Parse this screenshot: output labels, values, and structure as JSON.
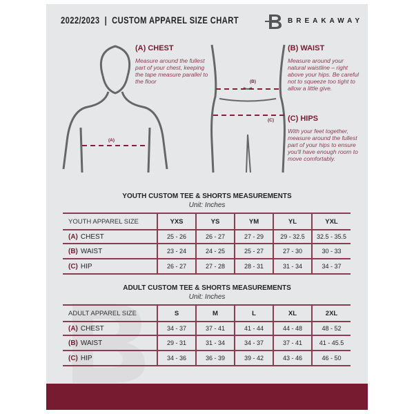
{
  "header": {
    "title": "2022/2023  |  CUSTOM APPAREL SIZE CHART",
    "brand": "BREAKAWAY"
  },
  "measures": {
    "chest": {
      "label": "(A) CHEST",
      "desc": "Measure around the fullest part of your chest, keeping the tape measure parallel to the floor",
      "marker": "(A)"
    },
    "waist": {
      "label": "(B) WAIST",
      "desc": "Measure around your natural waistline – right above your hips. Be careful not to squeeze too tight to allow a little give.",
      "marker": "(B)"
    },
    "hips": {
      "label": "(C) HIPS",
      "desc": "With your feet together, measure around the fullest part of your hips to ensure you'll have enough room to move comfortably.",
      "marker": "(C)"
    }
  },
  "youth": {
    "title": "YOUTH CUSTOM TEE & SHORTS MEASUREMENTS",
    "unit": "Unit: Inches",
    "header": "YOUTH APPAREL SIZE",
    "sizes": [
      "YXS",
      "YS",
      "YM",
      "YL",
      "YXL"
    ],
    "rows": [
      {
        "code": "(A)",
        "name": "CHEST",
        "values": [
          "25 - 26",
          "26 - 27",
          "27 - 29",
          "29 - 32.5",
          "32.5 - 35.5"
        ]
      },
      {
        "code": "(B)",
        "name": "WAIST",
        "values": [
          "23 - 24",
          "24 - 25",
          "25 - 27",
          "27 - 30",
          "30 - 33"
        ]
      },
      {
        "code": "(C)",
        "name": "HIP",
        "values": [
          "26 - 27",
          "27 - 28",
          "28 - 31",
          "31 - 34",
          "34 - 37"
        ]
      }
    ]
  },
  "adult": {
    "title": "ADULT CUSTOM TEE & SHORTS MEASUREMENTS",
    "unit": "Unit: Inches",
    "header": "ADULT APPAREL SIZE",
    "sizes": [
      "S",
      "M",
      "L",
      "XL",
      "2XL"
    ],
    "rows": [
      {
        "code": "(A)",
        "name": "CHEST",
        "values": [
          "34 - 37",
          "37 - 41",
          "41 - 44",
          "44 - 48",
          "48 - 52"
        ]
      },
      {
        "code": "(B)",
        "name": "WAIST",
        "values": [
          "29 - 31",
          "31 - 34",
          "34 - 37",
          "37 - 41",
          "41 - 45.5"
        ]
      },
      {
        "code": "(C)",
        "name": "HIP",
        "values": [
          "34 - 36",
          "36 - 39",
          "39 - 42",
          "43 - 46",
          "46 - 50"
        ]
      }
    ]
  },
  "colors": {
    "accent": "#761b30",
    "panel": "#e6e7e9"
  }
}
